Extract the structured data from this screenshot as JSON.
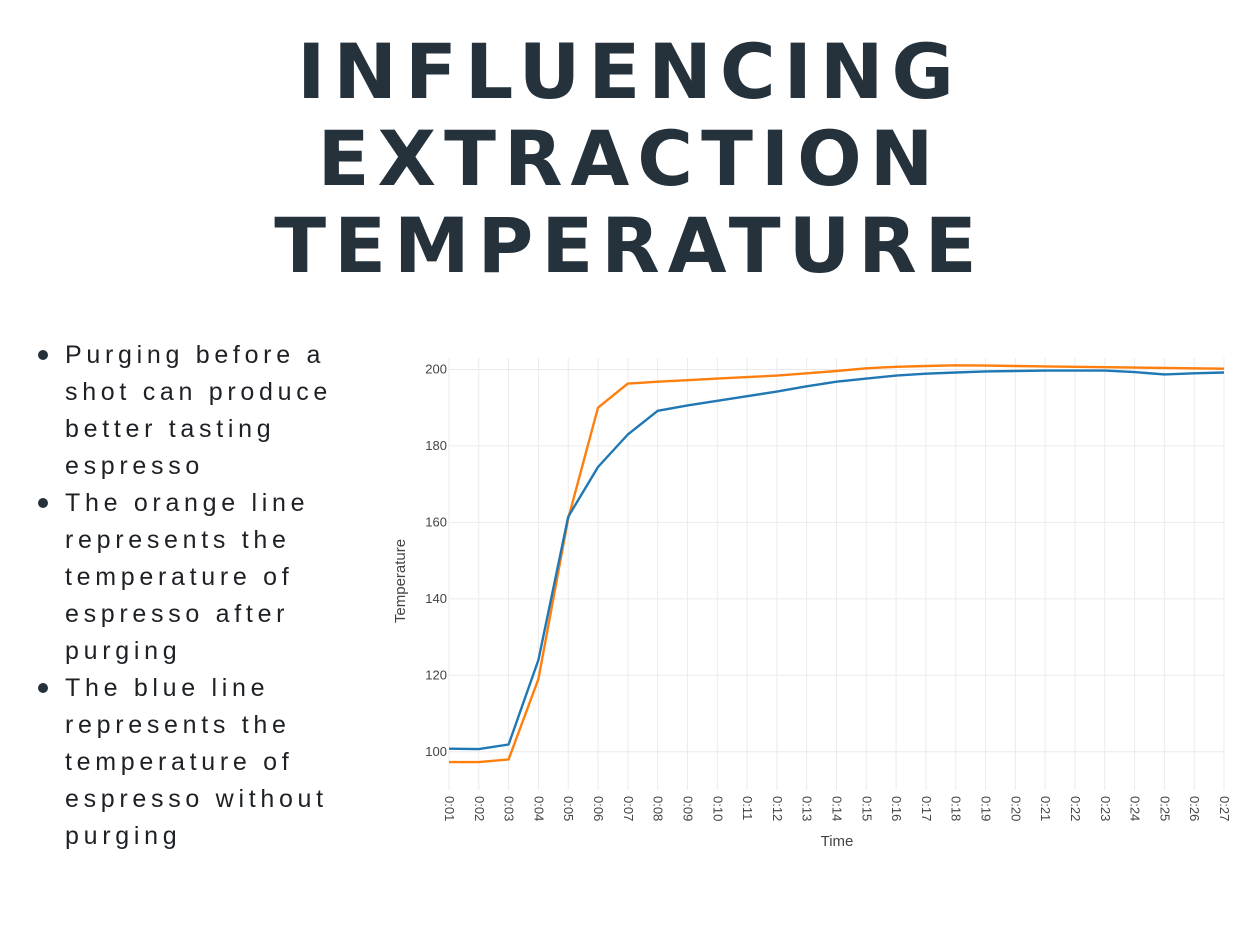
{
  "title": [
    "INFLUENCING",
    "EXTRACTION",
    "TEMPERATURE"
  ],
  "bullets": [
    "Purging before a shot can produce better tasting espresso",
    "The orange line represents the temperature of espresso after purging",
    "The blue line represents the temperature of espresso without purging"
  ],
  "chart_data": {
    "type": "line",
    "xlabel": "Time",
    "ylabel": "Temperature",
    "grid": true,
    "legend": "none",
    "ylim": [
      90,
      203
    ],
    "y_ticks": [
      100,
      120,
      140,
      160,
      180,
      200
    ],
    "x": [
      "0:01",
      "0:02",
      "0:03",
      "0:04",
      "0:05",
      "0:06",
      "0:07",
      "0:08",
      "0:09",
      "0:10",
      "0:11",
      "0:12",
      "0:13",
      "0:14",
      "0:15",
      "0:16",
      "0:17",
      "0:18",
      "0:19",
      "0:20",
      "0:21",
      "0:22",
      "0:23",
      "0:24",
      "0:25",
      "0:26",
      "0:27"
    ],
    "series": [
      {
        "color": "#ff7f0e",
        "values": [
          97.3,
          97.3,
          98,
          119,
          161,
          190,
          196.3,
          196.8,
          197.2,
          197.6,
          198,
          198.4,
          199,
          199.6,
          200.3,
          200.7,
          200.9,
          201.1,
          201,
          200.9,
          200.8,
          200.7,
          200.6,
          200.5,
          200.4,
          200.3,
          200.2
        ]
      },
      {
        "color": "#1f77b4",
        "values": [
          100.8,
          100.7,
          101.9,
          124,
          161.5,
          174.5,
          183,
          189.2,
          190.6,
          191.8,
          193,
          194.2,
          195.6,
          196.8,
          197.6,
          198.4,
          198.9,
          199.2,
          199.5,
          199.6,
          199.7,
          199.7,
          199.7,
          199.3,
          198.7,
          199,
          199.2
        ]
      }
    ]
  }
}
